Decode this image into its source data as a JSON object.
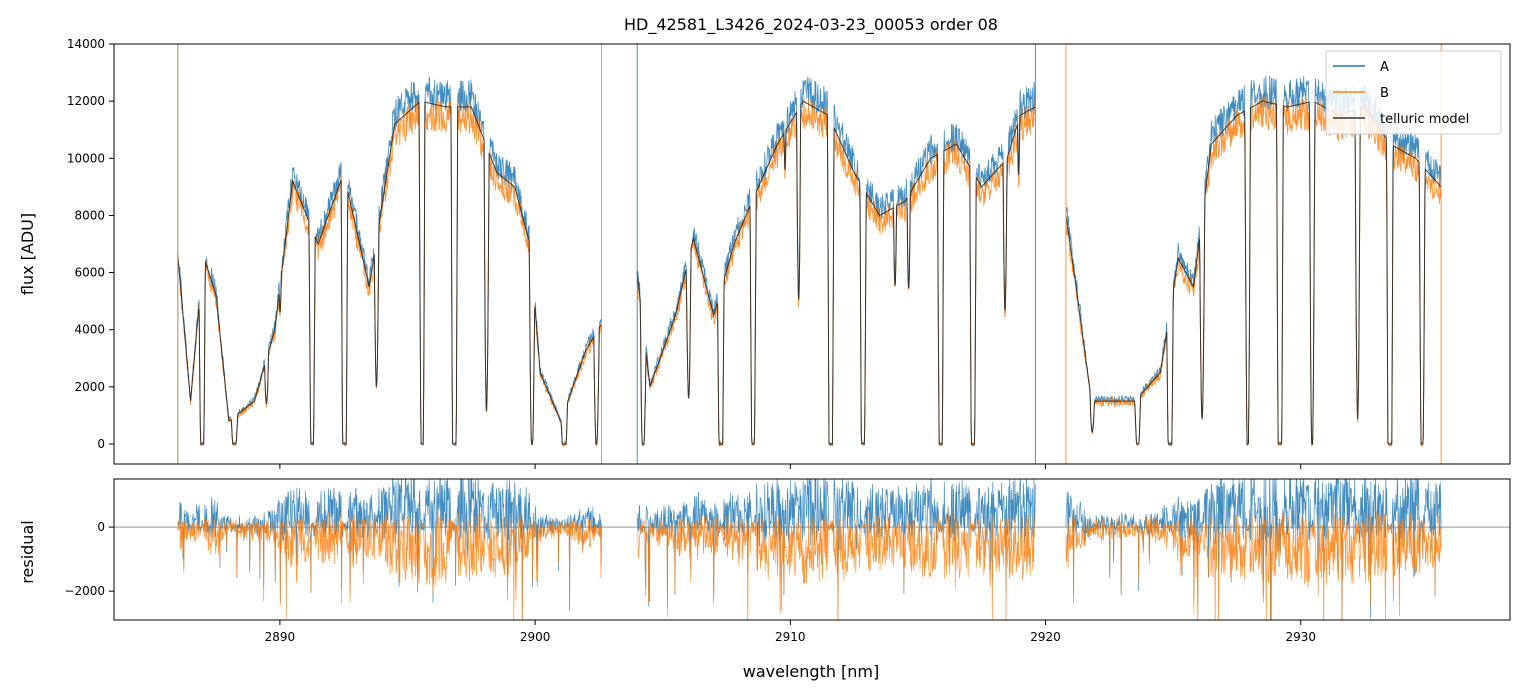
{
  "chart_data": [
    {
      "type": "line",
      "title": "HD_42581_L3426_2024-03-23_00053  order 08",
      "xlabel": "",
      "ylabel": "flux [ADU]",
      "xlim": [
        2883.5,
        2938.2
      ],
      "ylim": [
        -700,
        14000
      ],
      "yticks": [
        0,
        2000,
        4000,
        6000,
        8000,
        10000,
        12000,
        14000
      ],
      "xticks": [
        2890,
        2900,
        2910,
        2920,
        2930
      ],
      "legend": "top-right",
      "series": [
        {
          "name": "A",
          "color": "#1f77b4"
        },
        {
          "name": "B",
          "color": "#ff7f0e"
        },
        {
          "name": "telluric model",
          "color": "#000000"
        }
      ],
      "segments": [
        [
          2886.0,
          2902.6
        ],
        [
          2904.0,
          2919.6
        ],
        [
          2920.8,
          2935.5
        ]
      ],
      "model_envelope": [
        [
          2886.0,
          6600
        ],
        [
          2886.5,
          1500
        ],
        [
          2887.0,
          6600
        ],
        [
          2887.5,
          5200
        ],
        [
          2888.0,
          800
        ],
        [
          2889.0,
          1500
        ],
        [
          2889.8,
          4000
        ],
        [
          2890.5,
          9200
        ],
        [
          2891.5,
          7000
        ],
        [
          2892.5,
          9500
        ],
        [
          2893.5,
          5500
        ],
        [
          2894.5,
          11200
        ],
        [
          2895.5,
          12000
        ],
        [
          2896.5,
          11800
        ],
        [
          2897.5,
          11800
        ],
        [
          2898.5,
          9500
        ],
        [
          2899.2,
          9000
        ],
        [
          2899.8,
          7000
        ],
        [
          2900.2,
          2500
        ],
        [
          2901.0,
          800
        ],
        [
          2902.0,
          3300
        ],
        [
          2902.6,
          4200
        ],
        [
          2904.0,
          6000
        ],
        [
          2904.5,
          2000
        ],
        [
          2905.5,
          4500
        ],
        [
          2906.2,
          7200
        ],
        [
          2907.0,
          4500
        ],
        [
          2907.8,
          7000
        ],
        [
          2908.5,
          8500
        ],
        [
          2909.5,
          10500
        ],
        [
          2910.5,
          12000
        ],
        [
          2911.5,
          11500
        ],
        [
          2912.5,
          9500
        ],
        [
          2913.5,
          8000
        ],
        [
          2914.5,
          8500
        ],
        [
          2915.5,
          10000
        ],
        [
          2916.5,
          10500
        ],
        [
          2917.5,
          9000
        ],
        [
          2918.5,
          10000
        ],
        [
          2919.0,
          11500
        ],
        [
          2919.6,
          11800
        ],
        [
          2920.8,
          8000
        ],
        [
          2921.2,
          5500
        ],
        [
          2921.8,
          1500
        ],
        [
          2922.5,
          1500
        ],
        [
          2923.5,
          1500
        ],
        [
          2924.5,
          2500
        ],
        [
          2925.2,
          6500
        ],
        [
          2925.8,
          5500
        ],
        [
          2926.5,
          10500
        ],
        [
          2927.5,
          11500
        ],
        [
          2928.5,
          12000
        ],
        [
          2929.5,
          11800
        ],
        [
          2930.5,
          12000
        ],
        [
          2931.5,
          11500
        ],
        [
          2932.5,
          11800
        ],
        [
          2933.5,
          10500
        ],
        [
          2934.5,
          10000
        ],
        [
          2935.5,
          9000
        ]
      ]
    },
    {
      "type": "line",
      "title": "",
      "xlabel": "wavelength [nm]",
      "ylabel": "residual",
      "xlim": [
        2883.5,
        2938.2
      ],
      "ylim": [
        -2900,
        1500
      ],
      "yticks": [
        -2000,
        0
      ],
      "xticks": [
        2890,
        2900,
        2910,
        2920,
        2930
      ],
      "reference_line": 0,
      "series": [
        {
          "name": "A",
          "color": "#1f77b4"
        },
        {
          "name": "B",
          "color": "#ff7f0e"
        }
      ]
    }
  ]
}
